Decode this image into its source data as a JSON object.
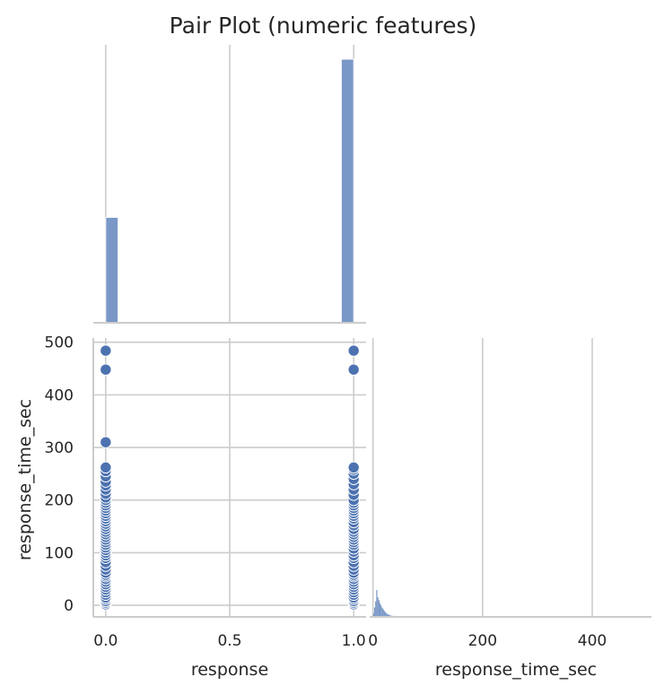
{
  "chart_data": {
    "type": "pairplot",
    "title": "Pair Plot (numeric features)",
    "variables": [
      "response",
      "response_time_sec"
    ],
    "grid": true,
    "colors": {
      "bar": "#6f8fc2",
      "point": "#4c72b0",
      "grid": "#cccccc"
    },
    "panels": [
      {
        "id": "response_hist",
        "type": "bar",
        "x": [
          0,
          1
        ],
        "values": [
          0.4,
          1.0
        ],
        "xlim": [
          -0.05,
          1.05
        ]
      },
      {
        "id": "scatter",
        "type": "scatter",
        "xlabel": "response",
        "ylabel": "response_time_sec",
        "xlim": [
          -0.05,
          1.05
        ],
        "ylim": [
          -22,
          508
        ],
        "xticks": [
          "0.0",
          "0.5",
          "1.0"
        ],
        "yticks": [
          "0",
          "100",
          "200",
          "300",
          "400",
          "500"
        ],
        "points": {
          "x0": [
            2,
            5,
            8,
            12,
            15,
            20,
            25,
            30,
            35,
            40,
            45,
            50,
            55,
            58,
            62,
            68,
            75,
            82,
            90,
            95,
            100,
            105,
            110,
            115,
            120,
            125,
            130,
            135,
            140,
            145,
            150,
            155,
            160,
            165,
            170,
            175,
            180,
            185,
            190,
            195,
            200,
            205,
            212,
            220,
            228,
            235,
            245,
            255,
            262,
            310,
            448,
            484
          ],
          "x1": [
            2,
            5,
            8,
            12,
            15,
            20,
            25,
            30,
            35,
            40,
            45,
            50,
            55,
            58,
            62,
            68,
            75,
            82,
            90,
            95,
            102,
            108,
            115,
            120,
            125,
            130,
            135,
            140,
            145,
            152,
            158,
            165,
            170,
            175,
            180,
            185,
            190,
            195,
            200,
            210,
            220,
            230,
            240,
            250,
            258,
            262,
            448,
            484
          ]
        }
      },
      {
        "id": "response_time_hist",
        "type": "bar",
        "xlabel": "response_time_sec",
        "xlim": [
          -6,
          508
        ],
        "xticks": [
          "0",
          "200",
          "400"
        ],
        "bin_width": 2,
        "x": [
          0,
          2,
          4,
          6,
          8,
          10,
          12,
          14,
          16,
          18,
          20,
          22,
          24,
          26,
          28,
          30,
          32,
          34,
          36,
          38,
          40,
          45,
          50,
          55,
          60,
          70,
          80,
          90,
          100
        ],
        "values": [
          0.12,
          0.35,
          0.58,
          1.0,
          0.72,
          0.62,
          0.5,
          0.42,
          0.34,
          0.28,
          0.22,
          0.17,
          0.13,
          0.1,
          0.08,
          0.06,
          0.05,
          0.04,
          0.035,
          0.03,
          0.025,
          0.02,
          0.015,
          0.012,
          0.01,
          0.008,
          0.006,
          0.005,
          0.004
        ]
      }
    ]
  }
}
